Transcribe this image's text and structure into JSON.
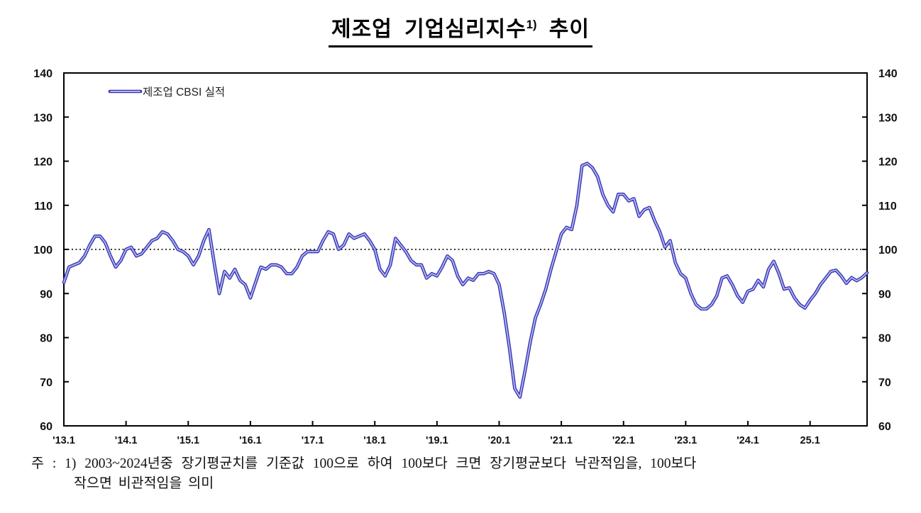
{
  "title": {
    "main": "제조업 기업심리지수",
    "sup": "1)",
    "tail": " 추이"
  },
  "legend": {
    "label": "제조업 CBSI 실적"
  },
  "footnote": {
    "line1": "주 : 1) 2003~2024년중 장기평균치를 기준값 100으로 하여 100보다 크면 장기평균보다 낙관적임을, 100보다",
    "line2": "작으면 비관적임을 의미"
  },
  "colors": {
    "line_outer": "#3232b2",
    "line_inner": "#b4b4ee",
    "baseline": "#1a1a1a",
    "axis": "#000000",
    "label": "#111111"
  },
  "chart_data": {
    "type": "line",
    "title": "제조업 기업심리지수1) 추이",
    "series_name": "제조업 CBSI 실적",
    "x_unit": "month",
    "x_start": "2013.01",
    "x_end": "2025.12",
    "x_tick_labels": [
      "'13.1",
      "'14.1",
      "'15.1",
      "'16.1",
      "'17.1",
      "'18.1",
      "'19.1",
      "'20.1",
      "'21.1",
      "'22.1",
      "'23.1",
      "'24.1",
      "25.1"
    ],
    "x_tick_month_index": [
      0,
      12,
      24,
      36,
      48,
      60,
      72,
      84,
      96,
      108,
      120,
      132,
      144
    ],
    "y_ticks": [
      60,
      70,
      80,
      90,
      100,
      110,
      120,
      130,
      140
    ],
    "ylim": [
      60,
      140
    ],
    "reference_line": 100,
    "grid": "none",
    "legend_position": "top-left-inside",
    "values": [
      92.5,
      96,
      96.5,
      97,
      98.5,
      101,
      103,
      103,
      101.5,
      98.5,
      96,
      97.5,
      100,
      100.5,
      98.5,
      99,
      100.5,
      102,
      102.5,
      104,
      103.5,
      102,
      100,
      99.5,
      98.5,
      96.5,
      98.5,
      102,
      104.5,
      97,
      90,
      95,
      93.5,
      95.5,
      93,
      92,
      89,
      92.5,
      96,
      95.5,
      96.5,
      96.5,
      96,
      94.5,
      94.5,
      96,
      98.5,
      99.5,
      99.5,
      99.5,
      102,
      104,
      103.5,
      100,
      101,
      103.5,
      102.5,
      103,
      103.5,
      102,
      100,
      95.5,
      94,
      96.5,
      102.5,
      101,
      99.5,
      97.5,
      96.5,
      96.5,
      93.5,
      94.5,
      94,
      96,
      98.5,
      97.5,
      94,
      92,
      93.5,
      93,
      94.5,
      94.5,
      95,
      94.5,
      92,
      85.5,
      77.5,
      68.5,
      66.5,
      72.5,
      79,
      84.5,
      87.5,
      91,
      95.5,
      99.5,
      103.5,
      105,
      104.5,
      110,
      119,
      119.5,
      118.5,
      116.5,
      112.5,
      110,
      108.5,
      112.5,
      112.5,
      111,
      111.5,
      107.5,
      109,
      109.5,
      106.5,
      104,
      100.5,
      102,
      97,
      94.5,
      93.5,
      90,
      87.5,
      86.5,
      86.5,
      87.5,
      89.5,
      93.5,
      94,
      92,
      89.5,
      88,
      90.5,
      91,
      93,
      91.5,
      95.5,
      97.3,
      94.5,
      91,
      91.3,
      89,
      87.5,
      86.7,
      88.5,
      90,
      92,
      93.5,
      95,
      95.3,
      94,
      92.3,
      93.6,
      92.9,
      93.6,
      94.7
    ]
  }
}
